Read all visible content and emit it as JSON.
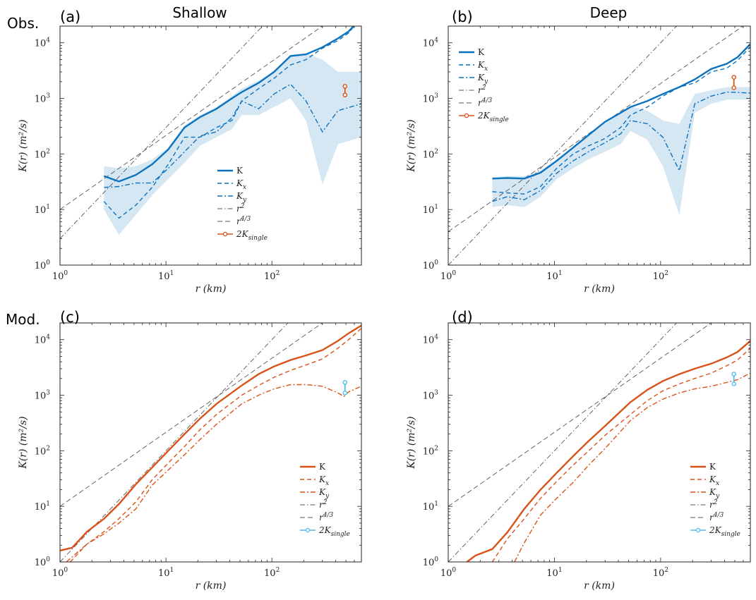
{
  "figure": {
    "col_titles": [
      "Shallow",
      "Deep"
    ],
    "row_labels": [
      "Obs.",
      "Mod."
    ]
  },
  "chart_data": [
    {
      "panel": "(a)",
      "type": "line",
      "xscale": "log",
      "yscale": "log",
      "xlabel": "r (km)",
      "ylabel": "K(r) (m²/s)",
      "xlim": [
        1,
        700
      ],
      "ylim": [
        1,
        20000
      ],
      "xticks": [
        "10^0",
        "10^1",
        "10^2"
      ],
      "yticks": [
        "10^0",
        "10^1",
        "10^2",
        "10^3",
        "10^4"
      ],
      "legend": {
        "position": "center",
        "entries": [
          "K",
          "K_x",
          "K_y",
          "r^2",
          "r^4/3",
          "2K_single"
        ]
      },
      "color": "#0b72bd",
      "series": [
        {
          "name": "K",
          "style": "solid",
          "x": [
            2.6,
            3.6,
            5.2,
            7.4,
            10.5,
            15,
            21,
            30,
            42,
            52,
            75,
            105,
            150,
            210,
            300,
            420,
            530,
            620
          ],
          "y": [
            40,
            32,
            42,
            65,
            120,
            300,
            460,
            650,
            1000,
            1300,
            1900,
            3000,
            5800,
            6200,
            8300,
            12000,
            16000,
            22000
          ]
        },
        {
          "name": "K_x",
          "style": "dashed",
          "x": [
            2.6,
            3.6,
            5.2,
            7.4,
            10.5,
            15,
            21,
            30,
            42,
            52,
            75,
            105,
            150,
            210,
            300,
            420,
            530,
            620
          ],
          "y": [
            14,
            7,
            12,
            25,
            65,
            200,
            200,
            300,
            400,
            900,
            1500,
            2300,
            4000,
            5000,
            8000,
            11000,
            15000,
            22000
          ]
        },
        {
          "name": "K_y",
          "style": "dashdot",
          "x": [
            2.6,
            3.6,
            5.2,
            7.4,
            10.5,
            15,
            21,
            30,
            42,
            52,
            75,
            105,
            150,
            210,
            300,
            420,
            700
          ],
          "y": [
            25,
            26,
            30,
            30,
            55,
            110,
            210,
            250,
            450,
            900,
            650,
            1200,
            1800,
            900,
            250,
            600,
            800
          ]
        },
        {
          "name": "band",
          "style": "fill",
          "x": [
            2.6,
            3.6,
            5.2,
            7.4,
            10.5,
            15,
            21,
            30,
            42,
            52,
            75,
            105,
            150,
            210,
            300,
            420,
            700
          ],
          "upper": [
            60,
            55,
            60,
            80,
            130,
            330,
            500,
            700,
            1100,
            1500,
            2100,
            3000,
            6000,
            6500,
            5000,
            3000,
            3000
          ],
          "lower": [
            10,
            3.5,
            8,
            18,
            35,
            70,
            140,
            200,
            280,
            500,
            500,
            700,
            1000,
            400,
            28,
            150,
            200
          ]
        },
        {
          "name": "r^2",
          "style": "ref-dashdot",
          "x": [
            1,
            700
          ],
          "y": [
            3,
            1470000
          ]
        },
        {
          "name": "r^4/3",
          "style": "ref-dashed",
          "x": [
            1,
            700
          ],
          "y": [
            10,
            62000
          ]
        },
        {
          "name": "2K_single",
          "style": "marker-bar",
          "x": [
            490,
            490
          ],
          "y": [
            1150,
            1650
          ],
          "color": "#d95319"
        }
      ]
    },
    {
      "panel": "(b)",
      "type": "line",
      "xscale": "log",
      "yscale": "log",
      "xlabel": "r (km)",
      "ylabel": "K(r) (m²/s)",
      "xlim": [
        1,
        700
      ],
      "ylim": [
        1,
        20000
      ],
      "xticks": [
        "10^0",
        "10^1",
        "10^2"
      ],
      "yticks": [
        "10^0",
        "10^1",
        "10^2",
        "10^3",
        "10^4"
      ],
      "legend": {
        "position": "top-left",
        "entries": [
          "K",
          "K_x",
          "K_y",
          "r^2",
          "r^4/3",
          "2K_single"
        ]
      },
      "color": "#0b72bd",
      "series": [
        {
          "name": "K",
          "style": "solid",
          "x": [
            2.6,
            3.6,
            5.2,
            7.4,
            10.5,
            15,
            21,
            30,
            42,
            52,
            75,
            105,
            150,
            210,
            300,
            420,
            530,
            700
          ],
          "y": [
            36,
            37,
            36,
            46,
            75,
            130,
            220,
            380,
            550,
            700,
            900,
            1200,
            1600,
            2200,
            3400,
            4200,
            5500,
            9500
          ]
        },
        {
          "name": "K_x",
          "style": "dashed",
          "x": [
            2.6,
            3.6,
            5.2,
            7.4,
            10.5,
            15,
            21,
            30,
            42,
            52,
            75,
            105,
            150,
            210,
            300,
            420,
            530,
            700
          ],
          "y": [
            21,
            20,
            19,
            26,
            55,
            100,
            140,
            190,
            300,
            500,
            700,
            1100,
            1600,
            1900,
            3000,
            3500,
            4800,
            8500
          ]
        },
        {
          "name": "K_y",
          "style": "dashdot",
          "x": [
            2.6,
            3.6,
            5.2,
            7.4,
            10.5,
            15,
            21,
            30,
            42,
            52,
            75,
            105,
            150,
            210,
            300,
            420,
            700
          ],
          "y": [
            14,
            17,
            15,
            22,
            45,
            75,
            110,
            160,
            230,
            400,
            350,
            200,
            50,
            800,
            1100,
            1300,
            1250
          ]
        },
        {
          "name": "band",
          "style": "fill",
          "x": [
            2.6,
            3.6,
            5.2,
            7.4,
            10.5,
            15,
            21,
            30,
            42,
            52,
            75,
            105,
            150,
            210,
            300,
            420,
            700
          ],
          "upper": [
            38,
            40,
            40,
            50,
            80,
            135,
            230,
            380,
            560,
            720,
            600,
            400,
            350,
            1200,
            1400,
            1600,
            1600
          ],
          "lower": [
            11,
            12,
            11,
            17,
            35,
            55,
            80,
            110,
            150,
            260,
            180,
            60,
            8,
            550,
            800,
            950,
            950
          ]
        },
        {
          "name": "r^2",
          "style": "ref-dashdot",
          "x": [
            1,
            700
          ],
          "y": [
            1,
            490000
          ]
        },
        {
          "name": "r^4/3",
          "style": "ref-dashed",
          "x": [
            1,
            700
          ],
          "y": [
            4,
            24800
          ]
        },
        {
          "name": "2K_single",
          "style": "marker-bar",
          "x": [
            490,
            490
          ],
          "y": [
            1550,
            2400
          ],
          "color": "#d95319"
        }
      ]
    },
    {
      "panel": "(c)",
      "type": "line",
      "xscale": "log",
      "yscale": "log",
      "xlabel": "r (km)",
      "ylabel": "K(r) (m²/s)",
      "xlim": [
        1,
        700
      ],
      "ylim": [
        1,
        20000
      ],
      "xticks": [
        "10^0",
        "10^1",
        "10^2"
      ],
      "yticks": [
        "10^0",
        "10^1",
        "10^2",
        "10^3",
        "10^4"
      ],
      "legend": {
        "position": "bottom-right",
        "entries": [
          "K",
          "K_x",
          "K_y",
          "r^2",
          "r^4/3",
          "2K_single"
        ]
      },
      "color": "#d95319",
      "series": [
        {
          "name": "K",
          "style": "solid",
          "x": [
            1,
            1.3,
            1.8,
            2.6,
            3.6,
            5.2,
            7.4,
            10.5,
            15,
            21,
            30,
            52,
            75,
            105,
            150,
            210,
            300,
            420,
            530,
            700
          ],
          "y": [
            1.6,
            1.8,
            3.5,
            6,
            11,
            25,
            50,
            100,
            200,
            380,
            700,
            1500,
            2400,
            3300,
            4300,
            5200,
            6500,
            9500,
            13000,
            18000
          ]
        },
        {
          "name": "K_x",
          "style": "dashed",
          "x": [
            1.25,
            1.8,
            2.6,
            3.6,
            5.2,
            7.4,
            10.5,
            15,
            21,
            30,
            52,
            75,
            105,
            150,
            210,
            300,
            420,
            530,
            700
          ],
          "y": [
            1,
            2.1,
            3.5,
            6,
            12,
            30,
            60,
            120,
            240,
            450,
            1000,
            1500,
            2100,
            2800,
            3500,
            4500,
            7000,
            10000,
            16000
          ]
        },
        {
          "name": "K_y",
          "style": "dashdot",
          "x": [
            1.15,
            1.8,
            2.6,
            3.6,
            5.2,
            7.4,
            10.5,
            15,
            21,
            30,
            52,
            75,
            105,
            150,
            210,
            300,
            420,
            480,
            530,
            700
          ],
          "y": [
            1,
            2.1,
            3.2,
            5,
            9,
            24,
            45,
            85,
            160,
            300,
            700,
            1000,
            1300,
            1550,
            1550,
            1450,
            1100,
            950,
            1150,
            1450
          ]
        },
        {
          "name": "r^2",
          "style": "ref-dashdot",
          "x": [
            1,
            700
          ],
          "y": [
            1,
            490000
          ]
        },
        {
          "name": "r^4/3",
          "style": "ref-dashed",
          "x": [
            1,
            700
          ],
          "y": [
            10,
            62000
          ]
        },
        {
          "name": "2K_single",
          "style": "marker-bar",
          "x": [
            490,
            490
          ],
          "y": [
            1100,
            1700
          ],
          "color": "#4dbeee"
        }
      ]
    },
    {
      "panel": "(d)",
      "type": "line",
      "xscale": "log",
      "yscale": "log",
      "xlabel": "r (km)",
      "ylabel": "K(r) (m²/s)",
      "xlim": [
        1,
        700
      ],
      "ylim": [
        1,
        20000
      ],
      "xticks": [
        "10^0",
        "10^1",
        "10^2"
      ],
      "yticks": [
        "10^0",
        "10^1",
        "10^2",
        "10^3",
        "10^4"
      ],
      "legend": {
        "position": "bottom-right",
        "entries": [
          "K",
          "K_x",
          "K_y",
          "r^2",
          "r^4/3",
          "2K_single"
        ]
      },
      "color": "#d95319",
      "series": [
        {
          "name": "K",
          "style": "solid",
          "x": [
            1.5,
            1.8,
            2.6,
            3.6,
            5.2,
            7.4,
            10.5,
            15,
            21,
            30,
            52,
            75,
            105,
            150,
            210,
            300,
            420,
            530,
            700
          ],
          "y": [
            1,
            1.3,
            1.7,
            3.4,
            9,
            20,
            40,
            80,
            150,
            280,
            750,
            1250,
            1800,
            2400,
            3000,
            3700,
            4800,
            6000,
            9500
          ]
        },
        {
          "name": "K_x",
          "style": "dashed",
          "x": [
            2.6,
            3.6,
            5.2,
            7.4,
            10.5,
            15,
            21,
            30,
            52,
            75,
            105,
            150,
            210,
            300,
            420,
            530,
            700
          ],
          "y": [
            1,
            2.6,
            6,
            14,
            28,
            55,
            100,
            190,
            450,
            800,
            1200,
            1600,
            2000,
            2500,
            3400,
            4300,
            7000
          ]
        },
        {
          "name": "K_y",
          "style": "dashdot",
          "x": [
            4.2,
            5.2,
            7.4,
            10.5,
            15,
            21,
            30,
            52,
            75,
            105,
            150,
            210,
            300,
            420,
            530,
            700
          ],
          "y": [
            1,
            2.2,
            7,
            14,
            27,
            55,
            110,
            350,
            600,
            850,
            1100,
            1300,
            1450,
            1700,
            1900,
            2500
          ]
        },
        {
          "name": "r^2",
          "style": "ref-dashdot",
          "x": [
            1,
            700
          ],
          "y": [
            1,
            490000
          ]
        },
        {
          "name": "r^4/3",
          "style": "ref-dashed",
          "x": [
            1,
            700
          ],
          "y": [
            10,
            62000
          ]
        },
        {
          "name": "2K_single",
          "style": "marker-bar",
          "x": [
            490,
            490
          ],
          "y": [
            1600,
            2400
          ],
          "color": "#4dbeee"
        }
      ]
    }
  ]
}
